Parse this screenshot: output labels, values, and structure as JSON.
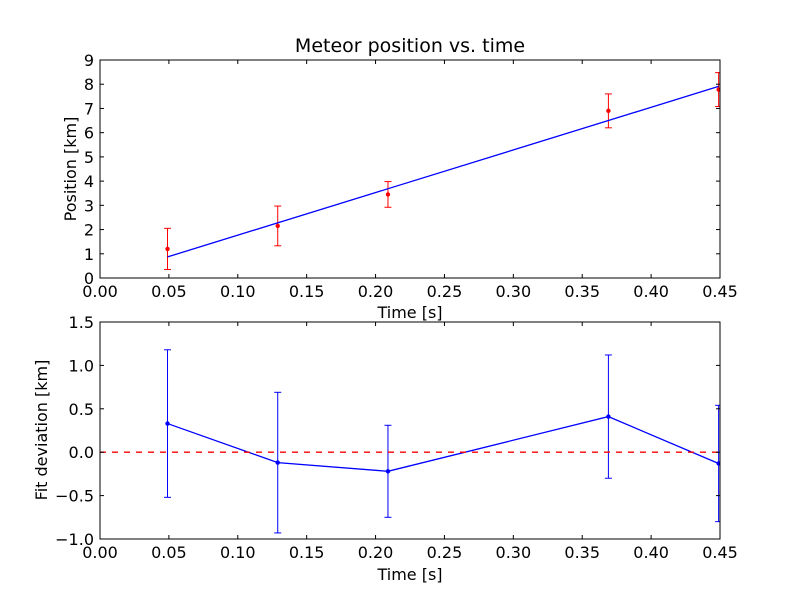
{
  "chart_data": [
    {
      "type": "scatter",
      "title": "Meteor position vs. time",
      "xlabel": "Time [s]",
      "ylabel": "Position [km]",
      "xlim": [
        0.0,
        0.45
      ],
      "ylim": [
        0,
        9
      ],
      "xticks": [
        "0.00",
        "0.05",
        "0.10",
        "0.15",
        "0.20",
        "0.25",
        "0.30",
        "0.35",
        "0.40",
        "0.45"
      ],
      "yticks": [
        "0",
        "1",
        "2",
        "3",
        "4",
        "5",
        "6",
        "7",
        "8",
        "9"
      ],
      "grid": false,
      "series": [
        {
          "kind": "errorbar",
          "color": "#ff0000",
          "x": [
            0.049,
            0.129,
            0.209,
            0.369,
            0.449
          ],
          "y": [
            1.2,
            2.15,
            3.45,
            6.9,
            7.78
          ],
          "yerr": [
            0.85,
            0.82,
            0.53,
            0.7,
            0.7
          ]
        },
        {
          "kind": "fit-line",
          "color": "#0000ff",
          "x": [
            0.049,
            0.449
          ],
          "y": [
            0.87,
            7.91
          ]
        }
      ]
    },
    {
      "type": "line",
      "title": "",
      "xlabel": "Time [s]",
      "ylabel": "Fit deviation [km]",
      "xlim": [
        0.0,
        0.45
      ],
      "ylim": [
        -1.0,
        1.5
      ],
      "xticks": [
        "0.00",
        "0.05",
        "0.10",
        "0.15",
        "0.20",
        "0.25",
        "0.30",
        "0.35",
        "0.40",
        "0.45"
      ],
      "yticks": [
        "−1.0",
        "−0.5",
        "0.0",
        "0.5",
        "1.0",
        "1.5"
      ],
      "grid": false,
      "series": [
        {
          "kind": "errorbar-line",
          "color": "#0000ff",
          "x": [
            0.049,
            0.129,
            0.209,
            0.369,
            0.449
          ],
          "y": [
            0.33,
            -0.12,
            -0.22,
            0.41,
            -0.13
          ],
          "yerr": [
            0.85,
            0.81,
            0.53,
            0.71,
            0.67
          ]
        },
        {
          "kind": "reference-line",
          "color": "#ff0000",
          "style": "dashed",
          "y": 0.0
        }
      ]
    }
  ]
}
